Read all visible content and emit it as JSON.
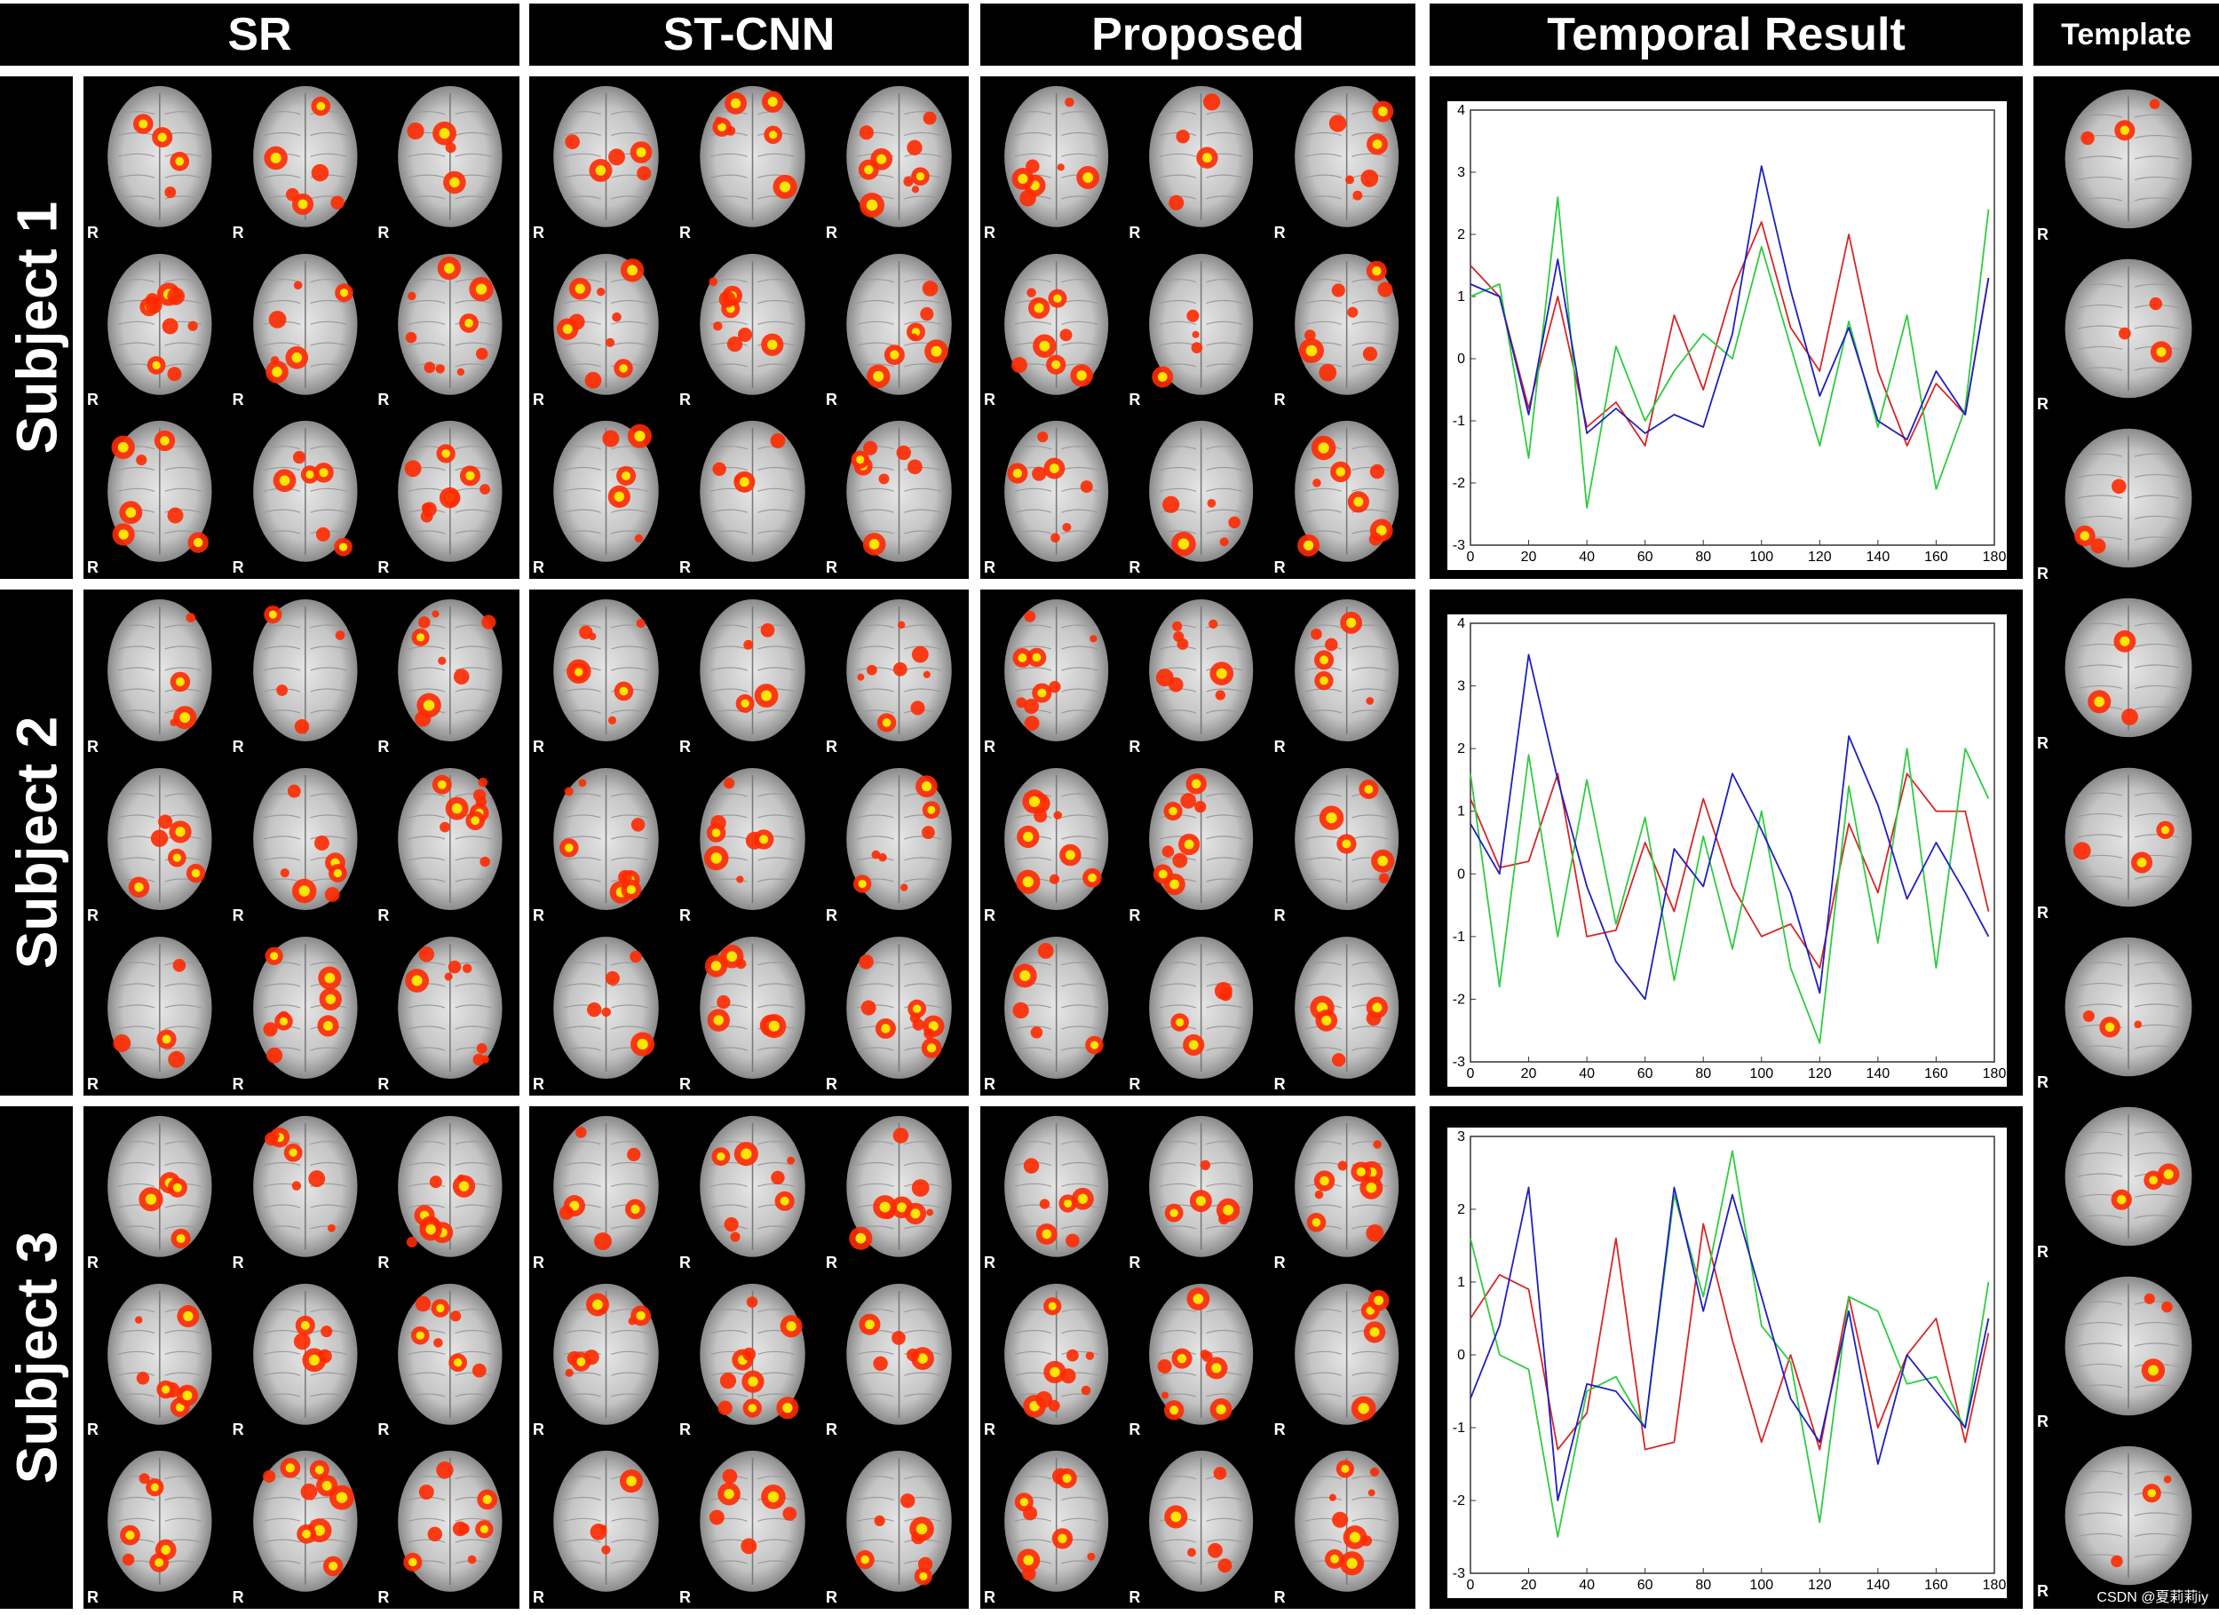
{
  "columns": [
    {
      "id": "sr",
      "title": "SR"
    },
    {
      "id": "stcnn",
      "title": "ST-CNN"
    },
    {
      "id": "proposed",
      "title": "Proposed"
    },
    {
      "id": "temporal",
      "title": "Temporal Result"
    },
    {
      "id": "template",
      "title": "Template"
    }
  ],
  "rows": [
    {
      "label": "Subject 1"
    },
    {
      "label": "Subject 2"
    },
    {
      "label": "Subject 3"
    }
  ],
  "orientation_marker": "R",
  "credit": "CSDN @夏莉莉iy",
  "colors": {
    "red_series": "#d62728",
    "green_series": "#2ecc40",
    "blue_series": "#1f1fbf",
    "activation_hot": "#ff2a00",
    "activation_core": "#ffe600"
  },
  "chart_data": [
    {
      "type": "line",
      "title": "",
      "xlabel": "",
      "ylabel": "",
      "xlim": [
        0,
        180
      ],
      "ylim": [
        -3,
        4
      ],
      "xticks": [
        0,
        20,
        40,
        60,
        80,
        100,
        120,
        140,
        160,
        180
      ],
      "yticks": [
        -3,
        -2,
        -1,
        0,
        1,
        2,
        3,
        4
      ],
      "grid": false,
      "series": [
        {
          "color": "#d62728",
          "x": [
            0,
            10,
            20,
            30,
            40,
            50,
            60,
            70,
            80,
            90,
            100,
            110,
            120,
            130,
            140,
            150,
            160,
            170,
            178
          ],
          "y": [
            1.5,
            1.0,
            -0.8,
            1.0,
            -1.1,
            -0.7,
            -1.4,
            0.7,
            -0.5,
            1.1,
            2.2,
            0.5,
            -0.2,
            2.0,
            -0.2,
            -1.4,
            -0.4,
            -0.9,
            1.3
          ]
        },
        {
          "color": "#2ecc40",
          "x": [
            0,
            10,
            20,
            30,
            40,
            50,
            60,
            70,
            80,
            90,
            100,
            110,
            120,
            130,
            140,
            150,
            160,
            170,
            178
          ],
          "y": [
            1.0,
            1.2,
            -1.6,
            2.6,
            -2.4,
            0.2,
            -1.0,
            -0.2,
            0.4,
            0.0,
            1.8,
            0.2,
            -1.4,
            0.6,
            -1.1,
            0.7,
            -2.1,
            -0.8,
            2.4
          ]
        },
        {
          "color": "#1f1fbf",
          "x": [
            0,
            10,
            20,
            30,
            40,
            50,
            60,
            70,
            80,
            90,
            100,
            110,
            120,
            130,
            140,
            150,
            160,
            170,
            178
          ],
          "y": [
            1.2,
            1.0,
            -0.9,
            1.6,
            -1.2,
            -0.8,
            -1.2,
            -0.9,
            -1.1,
            0.4,
            3.1,
            1.1,
            -0.6,
            0.5,
            -1.0,
            -1.3,
            -0.2,
            -0.9,
            1.3
          ]
        }
      ]
    },
    {
      "type": "line",
      "title": "",
      "xlabel": "",
      "ylabel": "",
      "xlim": [
        0,
        180
      ],
      "ylim": [
        -3,
        4
      ],
      "xticks": [
        0,
        20,
        40,
        60,
        80,
        100,
        120,
        140,
        160,
        180
      ],
      "yticks": [
        -3,
        -2,
        -1,
        0,
        1,
        2,
        3,
        4
      ],
      "grid": false,
      "series": [
        {
          "color": "#d62728",
          "x": [
            0,
            10,
            20,
            30,
            40,
            50,
            60,
            70,
            80,
            90,
            100,
            110,
            120,
            130,
            140,
            150,
            160,
            170,
            178
          ],
          "y": [
            1.2,
            0.1,
            0.2,
            1.6,
            -1.0,
            -0.9,
            0.5,
            -0.6,
            1.2,
            -0.2,
            -1.0,
            -0.8,
            -1.5,
            0.8,
            -0.3,
            1.6,
            1.0,
            1.0,
            -0.6
          ]
        },
        {
          "color": "#2ecc40",
          "x": [
            0,
            10,
            20,
            30,
            40,
            50,
            60,
            70,
            80,
            90,
            100,
            110,
            120,
            130,
            140,
            150,
            160,
            170,
            178
          ],
          "y": [
            1.6,
            -1.8,
            1.9,
            -1.0,
            1.5,
            -0.8,
            0.9,
            -1.7,
            0.6,
            -1.2,
            1.0,
            -1.5,
            -2.7,
            1.4,
            -1.1,
            2.0,
            -1.5,
            2.0,
            1.2
          ]
        },
        {
          "color": "#1f1fbf",
          "x": [
            0,
            10,
            20,
            30,
            40,
            50,
            60,
            70,
            80,
            90,
            100,
            110,
            120,
            130,
            140,
            150,
            160,
            170,
            178
          ],
          "y": [
            0.8,
            0.0,
            3.5,
            1.5,
            -0.2,
            -1.4,
            -2.0,
            0.4,
            -0.2,
            1.6,
            0.7,
            -0.3,
            -1.9,
            2.2,
            1.1,
            -0.4,
            0.5,
            -0.3,
            -1.0
          ]
        }
      ]
    },
    {
      "type": "line",
      "title": "",
      "xlabel": "",
      "ylabel": "",
      "xlim": [
        0,
        180
      ],
      "ylim": [
        -3,
        3
      ],
      "xticks": [
        0,
        20,
        40,
        60,
        80,
        100,
        120,
        140,
        160,
        180
      ],
      "yticks": [
        -3,
        -2,
        -1,
        0,
        1,
        2,
        3
      ],
      "grid": false,
      "series": [
        {
          "color": "#d62728",
          "x": [
            0,
            10,
            20,
            30,
            40,
            50,
            60,
            70,
            80,
            90,
            100,
            110,
            120,
            130,
            140,
            150,
            160,
            170,
            178
          ],
          "y": [
            0.5,
            1.1,
            0.9,
            -1.3,
            -0.8,
            1.6,
            -1.3,
            -1.2,
            1.8,
            0.2,
            -1.2,
            0.0,
            -1.3,
            0.8,
            -1.0,
            0.0,
            0.5,
            -1.2,
            0.3
          ]
        },
        {
          "color": "#2ecc40",
          "x": [
            0,
            10,
            20,
            30,
            40,
            50,
            60,
            70,
            80,
            90,
            100,
            110,
            120,
            130,
            140,
            150,
            160,
            170,
            178
          ],
          "y": [
            1.6,
            0.0,
            -0.2,
            -2.5,
            -0.5,
            -0.3,
            -1.0,
            2.2,
            0.8,
            2.8,
            0.4,
            -0.1,
            -2.3,
            0.8,
            0.6,
            -0.4,
            -0.3,
            -1.0,
            1.0
          ]
        },
        {
          "color": "#1f1fbf",
          "x": [
            0,
            10,
            20,
            30,
            40,
            50,
            60,
            70,
            80,
            90,
            100,
            110,
            120,
            130,
            140,
            150,
            160,
            170,
            178
          ],
          "y": [
            -0.6,
            0.4,
            2.3,
            -2.0,
            -0.4,
            -0.5,
            -1.0,
            2.3,
            0.6,
            2.2,
            0.8,
            -0.6,
            -1.2,
            0.6,
            -1.5,
            0.0,
            -0.5,
            -1.0,
            0.5
          ]
        }
      ]
    }
  ]
}
